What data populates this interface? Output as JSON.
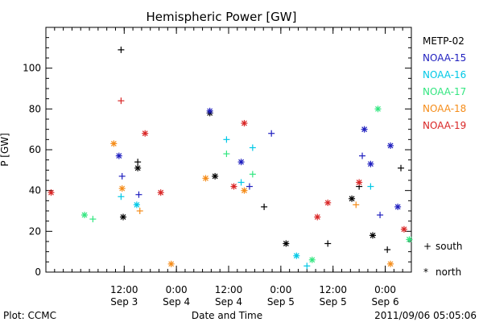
{
  "chart_data": {
    "type": "scatter",
    "title": "Hemispheric Power [GW]",
    "xlabel": "Date and Time",
    "ylabel": "P [GW]",
    "xlim": [
      -0.25,
      3.25
    ],
    "ylim": [
      0,
      120
    ],
    "yticks": [
      0,
      20,
      40,
      60,
      80,
      100
    ],
    "xticks": [
      {
        "x": 0.5,
        "time": "12:00",
        "date": "Sep 3"
      },
      {
        "x": 1.0,
        "time": "0:00",
        "date": "Sep 4"
      },
      {
        "x": 1.5,
        "time": "12:00",
        "date": "Sep 4"
      },
      {
        "x": 2.0,
        "time": "0:00",
        "date": "Sep 5"
      },
      {
        "x": 2.5,
        "time": "12:00",
        "date": "Sep 5"
      },
      {
        "x": 3.0,
        "time": "0:00",
        "date": "Sep 6"
      }
    ],
    "x_units": "days since 2011-09-03 00:00 UT",
    "legend_position": "right",
    "series": [
      {
        "name": "METP-02",
        "color": "#000000",
        "points": [
          {
            "x": 0.47,
            "y": 109,
            "h": "south"
          },
          {
            "x": 0.49,
            "y": 27,
            "h": "north"
          },
          {
            "x": 0.63,
            "y": 54,
            "h": "south"
          },
          {
            "x": 0.63,
            "y": 51,
            "h": "north"
          },
          {
            "x": 1.32,
            "y": 78,
            "h": "north"
          },
          {
            "x": 1.37,
            "y": 47,
            "h": "north"
          },
          {
            "x": 1.84,
            "y": 32,
            "h": "south"
          },
          {
            "x": 2.05,
            "y": 14,
            "h": "north"
          },
          {
            "x": 2.45,
            "y": 14,
            "h": "south"
          },
          {
            "x": 2.68,
            "y": 36,
            "h": "north"
          },
          {
            "x": 2.75,
            "y": 42,
            "h": "south"
          },
          {
            "x": 2.88,
            "y": 18,
            "h": "north"
          },
          {
            "x": 3.02,
            "y": 11,
            "h": "south"
          },
          {
            "x": 3.15,
            "y": 51,
            "h": "south"
          }
        ]
      },
      {
        "name": "NOAA-15",
        "color": "#1f1fbf",
        "points": [
          {
            "x": 0.45,
            "y": 57,
            "h": "north"
          },
          {
            "x": 0.48,
            "y": 47,
            "h": "south"
          },
          {
            "x": 0.64,
            "y": 38,
            "h": "south"
          },
          {
            "x": 1.32,
            "y": 79,
            "h": "north"
          },
          {
            "x": 1.62,
            "y": 54,
            "h": "north"
          },
          {
            "x": 1.7,
            "y": 42,
            "h": "south"
          },
          {
            "x": 1.91,
            "y": 68,
            "h": "south"
          },
          {
            "x": 2.78,
            "y": 57,
            "h": "south"
          },
          {
            "x": 2.8,
            "y": 70,
            "h": "north"
          },
          {
            "x": 2.86,
            "y": 53,
            "h": "north"
          },
          {
            "x": 2.95,
            "y": 28,
            "h": "south"
          },
          {
            "x": 3.05,
            "y": 62,
            "h": "north"
          },
          {
            "x": 3.12,
            "y": 32,
            "h": "north"
          }
        ]
      },
      {
        "name": "NOAA-16",
        "color": "#00c8e6",
        "points": [
          {
            "x": 0.47,
            "y": 37,
            "h": "south"
          },
          {
            "x": 0.62,
            "y": 33,
            "h": "north"
          },
          {
            "x": 1.48,
            "y": 65,
            "h": "south"
          },
          {
            "x": 1.62,
            "y": 44,
            "h": "south"
          },
          {
            "x": 1.73,
            "y": 61,
            "h": "south"
          },
          {
            "x": 2.86,
            "y": 42,
            "h": "south"
          },
          {
            "x": 2.15,
            "y": 8,
            "h": "north"
          },
          {
            "x": 2.25,
            "y": 3,
            "h": "south"
          }
        ]
      },
      {
        "name": "NOAA-17",
        "color": "#33e680",
        "points": [
          {
            "x": 0.12,
            "y": 28,
            "h": "north"
          },
          {
            "x": 0.2,
            "y": 26,
            "h": "south"
          },
          {
            "x": 1.48,
            "y": 58,
            "h": "south"
          },
          {
            "x": 1.73,
            "y": 48,
            "h": "south"
          },
          {
            "x": 2.93,
            "y": 80,
            "h": "north"
          },
          {
            "x": 3.23,
            "y": 16,
            "h": "north"
          },
          {
            "x": 2.3,
            "y": 6,
            "h": "north"
          }
        ]
      },
      {
        "name": "NOAA-18",
        "color": "#f58c19",
        "points": [
          {
            "x": 0.4,
            "y": 63,
            "h": "north"
          },
          {
            "x": 0.48,
            "y": 41,
            "h": "north"
          },
          {
            "x": 0.65,
            "y": 30,
            "h": "south"
          },
          {
            "x": 1.28,
            "y": 46,
            "h": "north"
          },
          {
            "x": 1.65,
            "y": 40,
            "h": "north"
          },
          {
            "x": 2.72,
            "y": 33,
            "h": "south"
          },
          {
            "x": 3.05,
            "y": 4,
            "h": "north"
          },
          {
            "x": 0.95,
            "y": 4,
            "h": "north"
          }
        ]
      },
      {
        "name": "NOAA-19",
        "color": "#d92626",
        "points": [
          {
            "x": -0.2,
            "y": 39,
            "h": "north"
          },
          {
            "x": 0.47,
            "y": 84,
            "h": "south"
          },
          {
            "x": 0.7,
            "y": 68,
            "h": "north"
          },
          {
            "x": 0.85,
            "y": 39,
            "h": "north"
          },
          {
            "x": 1.65,
            "y": 73,
            "h": "north"
          },
          {
            "x": 1.55,
            "y": 42,
            "h": "north"
          },
          {
            "x": 2.45,
            "y": 34,
            "h": "north"
          },
          {
            "x": 2.75,
            "y": 44,
            "h": "north"
          },
          {
            "x": 3.18,
            "y": 21,
            "h": "north"
          },
          {
            "x": 2.35,
            "y": 27,
            "h": "north"
          }
        ]
      }
    ]
  },
  "legend": {
    "marker_south_label": "south",
    "marker_north_label": "north"
  },
  "footer": {
    "plot_credit": "Plot: CCMC",
    "timestamp": "2011/09/06 05:05:06"
  }
}
